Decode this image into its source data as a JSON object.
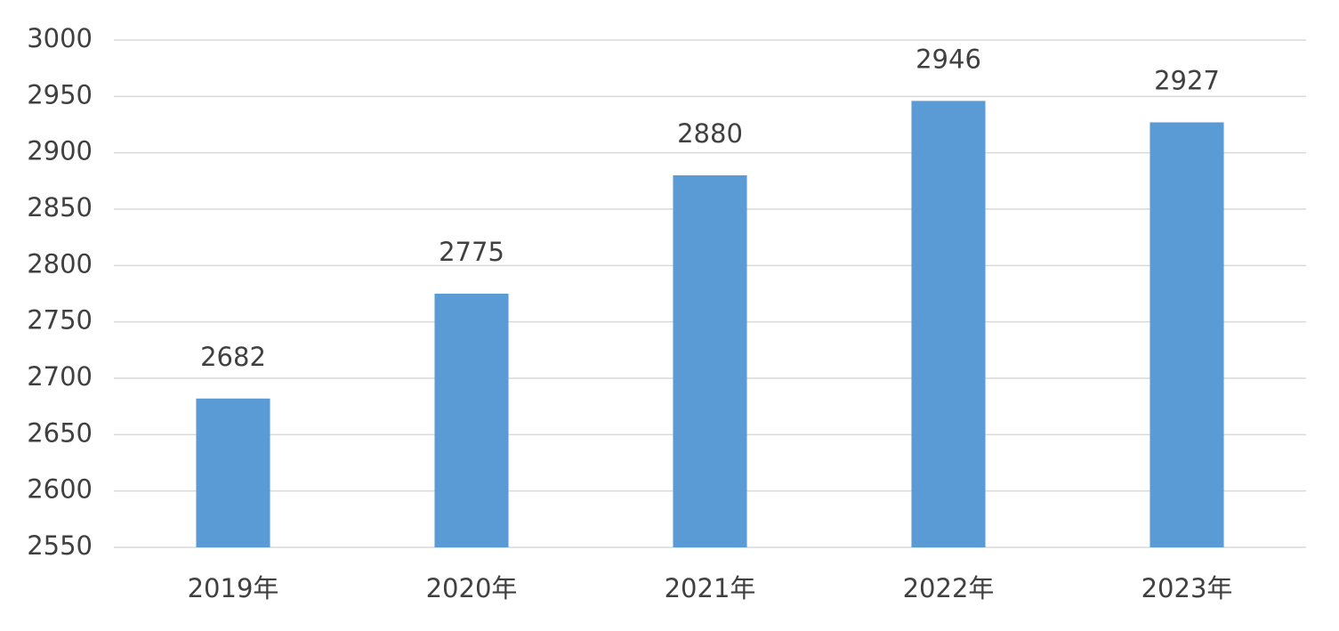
{
  "chart_data": {
    "type": "bar",
    "categories": [
      "2019年",
      "2020年",
      "2021年",
      "2022年",
      "2023年"
    ],
    "values": [
      2682,
      2775,
      2880,
      2946,
      2927
    ],
    "color": "#5b9bd5",
    "ylim": [
      2550,
      3000
    ],
    "yticks": [
      2550,
      2600,
      2650,
      2700,
      2750,
      2800,
      2850,
      2900,
      2950,
      3000
    ],
    "grid": true
  }
}
